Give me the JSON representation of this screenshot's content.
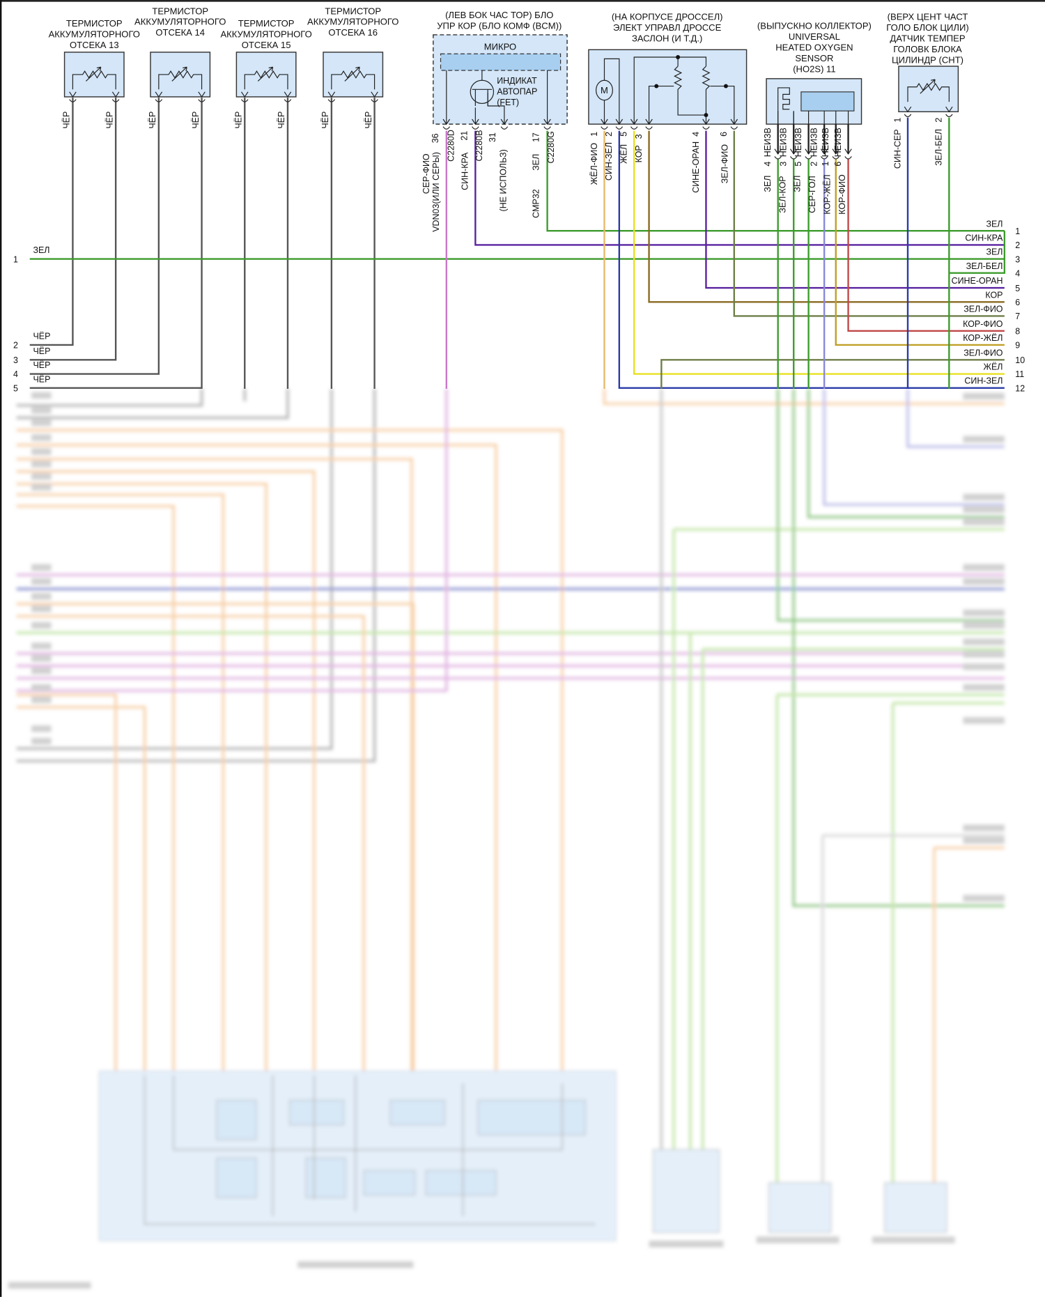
{
  "thermistors": [
    {
      "lines": [
        "ТЕРМИСТОР",
        "АККУМУЛЯТОРНОГО",
        "ОТСЕКА 13"
      ],
      "pin_labels": [
        "ЧЁР",
        "ЧЁР"
      ]
    },
    {
      "lines": [
        "ТЕРМИСТОР",
        "АККУМУЛЯТОРНОГО",
        "ОТСЕКА 14"
      ],
      "pin_labels": [
        "ЧЁР",
        "ЧЁР"
      ]
    },
    {
      "lines": [
        "ТЕРМИСТОР",
        "АККУМУЛЯТОРНОГО",
        "ОТСЕКА 15"
      ],
      "pin_labels": [
        "ЧЁР",
        "ЧЁР"
      ]
    },
    {
      "lines": [
        "ТЕРМИСТОР",
        "АККУМУЛЯТОРНОГО",
        "ОТСЕКА 16"
      ],
      "pin_labels": [
        "ЧЁР",
        "ЧЁР"
      ]
    }
  ],
  "bcm": {
    "lines": [
      "(ЛЕВ БОК ЧАС ТОР) БЛО",
      "УПР КОР (БЛО КОМФ (BCM))"
    ],
    "micro_label": "МИКРО",
    "fet_lines": [
      "ИНДИКАТ",
      "АВТОПАР",
      "(FET)"
    ],
    "pins": [
      {
        "pin": "36",
        "connector": "C2280D",
        "wire": "СЕР-ФИО",
        "wire_alt": "VDN03(ИЛИ СЕРЫ)"
      },
      {
        "pin": "21",
        "connector": "C2280B",
        "wire": "СИН-КРА"
      },
      {
        "pin": "31",
        "note": "(НЕ ИСПОЛЬЗ)"
      },
      {
        "pin": "17",
        "connector": "C2280G",
        "wire": "ЗЕЛ",
        "wire_alt": "CMP32"
      }
    ]
  },
  "throttle": {
    "lines": [
      "(НА КОРПУСЕ ДРОССЕЛ)",
      "ЭЛЕКТ УПРАВЛ ДРОССЕ",
      "ЗАСЛОН (И Т.Д.)"
    ],
    "motor_label": "M",
    "pins": [
      {
        "pin": "1",
        "wire": "ЖЁЛ-ФИО"
      },
      {
        "pin": "2",
        "wire": "СИН-ЗЕЛ"
      },
      {
        "pin": "5",
        "wire": "ЖЁЛ"
      },
      {
        "pin": "3",
        "wire": "КОР"
      },
      {
        "pin": "4",
        "wire": "СИНЕ-ОРАН"
      },
      {
        "pin": "6",
        "wire": "ЗЕЛ-ФИО"
      }
    ]
  },
  "o2_sensor": {
    "lines": [
      "(ВЫПУСКНО КОЛЛЕКТОР)",
      "UNIVERSAL",
      "HEATED OXYGEN",
      "SENSOR",
      "(HO2S) 11"
    ],
    "pins": [
      {
        "pin": "4",
        "type": "НЕИЗВ",
        "wire": "ЗЕЛ"
      },
      {
        "pin": "3",
        "type": "НЕИЗВ",
        "wire": "ЗЕЛ-КОР"
      },
      {
        "pin": "5",
        "type": "НЕИЗВ",
        "wire": "ЗЕЛ"
      },
      {
        "pin": "2",
        "type": "НЕИЗВ",
        "wire": "СЕР-ГОЛ"
      },
      {
        "pin": "1",
        "type": "НЕИЗВ",
        "wire": "КОР-ЖЁЛ"
      },
      {
        "pin": "6",
        "type": "НЕИЗВ",
        "wire": "КОР-ФИО"
      }
    ]
  },
  "cht_sensor": {
    "lines": [
      "(ВЕРХ ЦЕНТ ЧАСТ",
      "ГОЛО БЛОК ЦИЛИ)",
      "ДАТЧИК ТЕМПЕР",
      "ГОЛОВК БЛОКА",
      "ЦИЛИНДР (CHT)"
    ],
    "pins": [
      {
        "pin": "1",
        "wire": "СИН-СЕР"
      },
      {
        "pin": "2",
        "wire": "ЗЕЛ-БЕЛ"
      }
    ]
  },
  "left_connector": {
    "rows": [
      {
        "num": "1",
        "wire": "ЗЕЛ"
      },
      {
        "num": "2",
        "wire": "ЧЁР"
      },
      {
        "num": "3",
        "wire": "ЧЁР"
      },
      {
        "num": "4",
        "wire": "ЧЁР"
      },
      {
        "num": "5",
        "wire": "ЧЁР"
      }
    ]
  },
  "right_connector": {
    "rows": [
      {
        "num": "1",
        "wire": "ЗЕЛ"
      },
      {
        "num": "2",
        "wire": "СИН-КРА"
      },
      {
        "num": "3",
        "wire": "ЗЕЛ"
      },
      {
        "num": "4",
        "wire": "ЗЕЛ-БЕЛ"
      },
      {
        "num": "5",
        "wire": "СИНЕ-ОРАН"
      },
      {
        "num": "6",
        "wire": "КОР"
      },
      {
        "num": "7",
        "wire": "ЗЕЛ-ФИО"
      },
      {
        "num": "8",
        "wire": "КОР-ФИО"
      },
      {
        "num": "9",
        "wire": "КОР-ЖЁЛ"
      },
      {
        "num": "10",
        "wire": "ЗЕЛ-ФИО"
      },
      {
        "num": "11",
        "wire": "ЖЁЛ"
      },
      {
        "num": "12",
        "wire": "СИН-ЗЕЛ"
      }
    ]
  },
  "wire_colors": {
    "black": "#555555",
    "green": "#3c9c2c",
    "purple": "#5a22a0",
    "pink": "#c878c8",
    "blue": "#2a3aa8",
    "yellow": "#e8e020",
    "brown": "#8a6a20",
    "olive": "#6e7e48",
    "red": "#c04848",
    "yellow_violet": "#e8b868",
    "brown_yellow": "#c0a028",
    "gray_blue": "#8888d8",
    "orange": "#f0a860",
    "light_green": "#90d060"
  },
  "bottom_region_blurred": true
}
